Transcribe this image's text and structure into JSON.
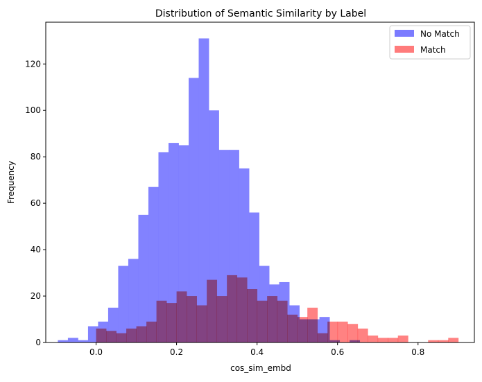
{
  "chart_data": {
    "type": "bar",
    "title": "Distribution of Semantic Similarity by Label",
    "xlabel": "cos_sim_embd",
    "ylabel": "Frequency",
    "xlim": [
      -0.125,
      0.94
    ],
    "ylim": [
      0,
      138
    ],
    "xticks": [
      0.0,
      0.2,
      0.4,
      0.6,
      0.8
    ],
    "yticks": [
      0,
      20,
      40,
      60,
      80,
      100,
      120
    ],
    "grid": false,
    "legend_position": "top-right",
    "series": [
      {
        "name": "No Match",
        "color": "#7b7bff",
        "bins": [
          {
            "x0": -0.095,
            "x1": -0.07,
            "count": 1
          },
          {
            "x0": -0.07,
            "x1": -0.045,
            "count": 2
          },
          {
            "x0": -0.045,
            "x1": -0.02,
            "count": 1
          },
          {
            "x0": -0.02,
            "x1": 0.005,
            "count": 7
          },
          {
            "x0": 0.005,
            "x1": 0.03,
            "count": 9
          },
          {
            "x0": 0.03,
            "x1": 0.055,
            "count": 15
          },
          {
            "x0": 0.055,
            "x1": 0.08,
            "count": 33
          },
          {
            "x0": 0.08,
            "x1": 0.105,
            "count": 36
          },
          {
            "x0": 0.105,
            "x1": 0.13,
            "count": 55
          },
          {
            "x0": 0.13,
            "x1": 0.155,
            "count": 67
          },
          {
            "x0": 0.155,
            "x1": 0.18,
            "count": 82
          },
          {
            "x0": 0.18,
            "x1": 0.205,
            "count": 86
          },
          {
            "x0": 0.205,
            "x1": 0.23,
            "count": 85
          },
          {
            "x0": 0.23,
            "x1": 0.255,
            "count": 114
          },
          {
            "x0": 0.255,
            "x1": 0.28,
            "count": 131
          },
          {
            "x0": 0.28,
            "x1": 0.305,
            "count": 100
          },
          {
            "x0": 0.305,
            "x1": 0.33,
            "count": 83
          },
          {
            "x0": 0.33,
            "x1": 0.355,
            "count": 83
          },
          {
            "x0": 0.355,
            "x1": 0.38,
            "count": 75
          },
          {
            "x0": 0.38,
            "x1": 0.405,
            "count": 56
          },
          {
            "x0": 0.405,
            "x1": 0.43,
            "count": 33
          },
          {
            "x0": 0.43,
            "x1": 0.455,
            "count": 25
          },
          {
            "x0": 0.455,
            "x1": 0.48,
            "count": 26
          },
          {
            "x0": 0.48,
            "x1": 0.505,
            "count": 16
          },
          {
            "x0": 0.505,
            "x1": 0.53,
            "count": 10
          },
          {
            "x0": 0.53,
            "x1": 0.555,
            "count": 10
          },
          {
            "x0": 0.555,
            "x1": 0.58,
            "count": 11
          },
          {
            "x0": 0.58,
            "x1": 0.605,
            "count": 1
          },
          {
            "x0": 0.605,
            "x1": 0.63,
            "count": 0
          },
          {
            "x0": 0.63,
            "x1": 0.655,
            "count": 1
          }
        ]
      },
      {
        "name": "Match",
        "color": "#ff7b7b",
        "bins": [
          {
            "x0": 0.0,
            "x1": 0.025,
            "count": 6
          },
          {
            "x0": 0.025,
            "x1": 0.05,
            "count": 5
          },
          {
            "x0": 0.05,
            "x1": 0.075,
            "count": 4
          },
          {
            "x0": 0.075,
            "x1": 0.1,
            "count": 6
          },
          {
            "x0": 0.1,
            "x1": 0.125,
            "count": 7
          },
          {
            "x0": 0.125,
            "x1": 0.15,
            "count": 9
          },
          {
            "x0": 0.15,
            "x1": 0.175,
            "count": 18
          },
          {
            "x0": 0.175,
            "x1": 0.2,
            "count": 17
          },
          {
            "x0": 0.2,
            "x1": 0.225,
            "count": 22
          },
          {
            "x0": 0.225,
            "x1": 0.25,
            "count": 20
          },
          {
            "x0": 0.25,
            "x1": 0.275,
            "count": 16
          },
          {
            "x0": 0.275,
            "x1": 0.3,
            "count": 27
          },
          {
            "x0": 0.3,
            "x1": 0.325,
            "count": 20
          },
          {
            "x0": 0.325,
            "x1": 0.35,
            "count": 29
          },
          {
            "x0": 0.35,
            "x1": 0.375,
            "count": 28
          },
          {
            "x0": 0.375,
            "x1": 0.4,
            "count": 23
          },
          {
            "x0": 0.4,
            "x1": 0.425,
            "count": 18
          },
          {
            "x0": 0.425,
            "x1": 0.45,
            "count": 20
          },
          {
            "x0": 0.45,
            "x1": 0.475,
            "count": 18
          },
          {
            "x0": 0.475,
            "x1": 0.5,
            "count": 12
          },
          {
            "x0": 0.5,
            "x1": 0.525,
            "count": 11
          },
          {
            "x0": 0.525,
            "x1": 0.55,
            "count": 15
          },
          {
            "x0": 0.55,
            "x1": 0.575,
            "count": 4
          },
          {
            "x0": 0.575,
            "x1": 0.6,
            "count": 9
          },
          {
            "x0": 0.6,
            "x1": 0.625,
            "count": 9
          },
          {
            "x0": 0.625,
            "x1": 0.65,
            "count": 8
          },
          {
            "x0": 0.65,
            "x1": 0.675,
            "count": 6
          },
          {
            "x0": 0.675,
            "x1": 0.7,
            "count": 3
          },
          {
            "x0": 0.7,
            "x1": 0.725,
            "count": 2
          },
          {
            "x0": 0.725,
            "x1": 0.75,
            "count": 2
          },
          {
            "x0": 0.75,
            "x1": 0.775,
            "count": 3
          },
          {
            "x0": 0.775,
            "x1": 0.8,
            "count": 0
          },
          {
            "x0": 0.8,
            "x1": 0.825,
            "count": 0
          },
          {
            "x0": 0.825,
            "x1": 0.85,
            "count": 1
          },
          {
            "x0": 0.85,
            "x1": 0.875,
            "count": 1
          },
          {
            "x0": 0.875,
            "x1": 0.9,
            "count": 2
          }
        ]
      }
    ]
  }
}
